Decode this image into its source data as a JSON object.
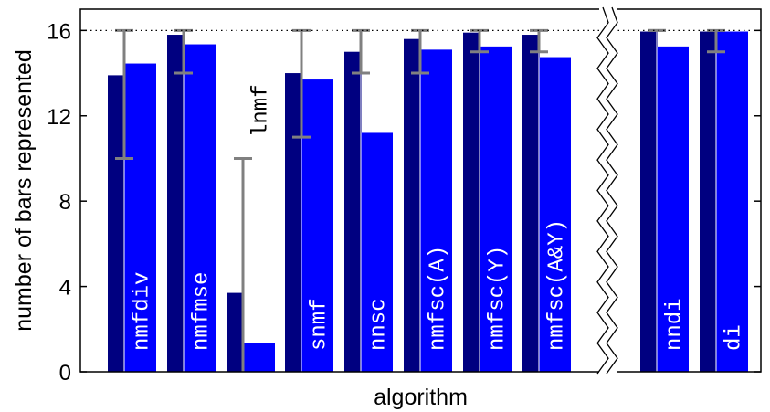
{
  "chart_data": {
    "type": "bar",
    "title": "",
    "xlabel": "algorithm",
    "ylabel": "number of bars represented",
    "ylim": [
      0,
      17
    ],
    "yticks": [
      0,
      4,
      8,
      12,
      16
    ],
    "reference_line": 16,
    "axis_break": "between nmfsc(A&Y) and nndi",
    "grid": false,
    "colors": {
      "dark": "#000080",
      "light": "#0000ff",
      "errorbar": "#808080"
    },
    "categories": [
      "nmfdiv",
      "nmfmse",
      "lnmf",
      "snmf",
      "nnsc",
      "nmfsc(A)",
      "nmfsc(Y)",
      "nmfsc(A&Y)",
      "nndi",
      "di"
    ],
    "series": [
      {
        "values": [
          13.9,
          15.8,
          3.7,
          14.0,
          15.0,
          15.6,
          15.9,
          15.8,
          15.95,
          15.95
        ]
      },
      {
        "values": [
          14.45,
          15.35,
          1.35,
          13.7,
          11.2,
          15.1,
          15.25,
          14.75,
          15.25,
          15.95
        ]
      }
    ],
    "error_bars": [
      {
        "low": 10,
        "high": 16
      },
      {
        "low": 14,
        "high": 16
      },
      {
        "low": 0,
        "high": 10
      },
      {
        "low": 11,
        "high": 16
      },
      {
        "low": 14,
        "high": 16
      },
      {
        "low": 14,
        "high": 16
      },
      {
        "low": 15,
        "high": 16
      },
      {
        "low": 15,
        "high": 16
      },
      {
        "low": 16,
        "high": 16
      },
      {
        "low": 15,
        "high": 16
      }
    ]
  }
}
